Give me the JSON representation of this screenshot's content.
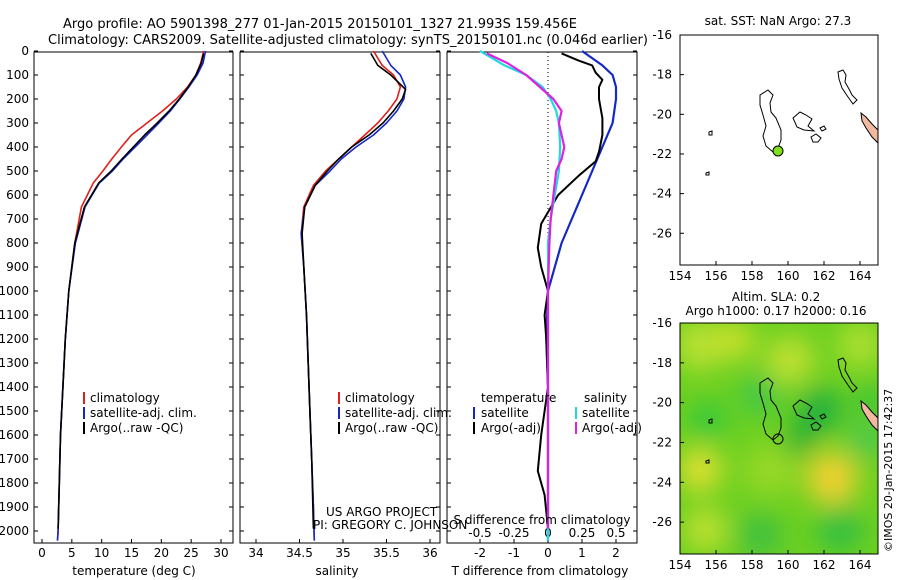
{
  "header": {
    "line1": "Argo profile: AO 5901398_277 01-Jan-2015 20150101_1327 21.993S 159.456E",
    "line2": "Climatology: CARS2009. Satellite-adjusted climatology: synTS_20150101.nc (0.046d earlier)"
  },
  "colors": {
    "climatology": "#e0201c",
    "satellite": "#1428c8",
    "argo": "#000000",
    "salinity_satellite": "#20d8e0",
    "salinity_argo": "#e020e0",
    "land_fill": "#f2b8a0",
    "float_marker": "#80e020"
  },
  "depth_axis": {
    "ticks": [
      "0",
      "100",
      "200",
      "300",
      "400",
      "500",
      "600",
      "700",
      "800",
      "900",
      "1000",
      "1100",
      "1200",
      "1300",
      "1400",
      "1500",
      "1600",
      "1700",
      "1800",
      "1900",
      "2000"
    ]
  },
  "chart_data": [
    {
      "type": "line",
      "xlabel": "temperature (deg C)",
      "ylabel": "",
      "xlim": [
        -1,
        31
      ],
      "ylim": [
        2060,
        0
      ],
      "xticks": [
        "0",
        "5",
        "10",
        "15",
        "20",
        "25",
        "30"
      ],
      "legend": {
        "placement": "bottom-left",
        "entries": [
          "climatology",
          "satellite-adj. clim.",
          "Argo(..raw -QC)"
        ]
      },
      "series": [
        {
          "name": "climatology",
          "color_key": "climatology",
          "x": [
            27.1,
            26.6,
            25.8,
            24.4,
            22.5,
            20.2,
            17.6,
            15.0,
            13.3,
            11.7,
            10.2,
            8.6,
            6.6,
            5.5,
            4.5,
            3.9,
            3.5,
            3.1,
            2.9,
            2.8,
            2.7,
            2.6
          ],
          "y": [
            0,
            50,
            100,
            150,
            200,
            250,
            300,
            350,
            400,
            450,
            500,
            550,
            650,
            800,
            1000,
            1200,
            1400,
            1600,
            1800,
            1900,
            2000,
            2040
          ]
        },
        {
          "name": "satellite-adj. clim.",
          "color_key": "satellite",
          "x": [
            27.4,
            27.0,
            26.0,
            24.6,
            23.1,
            21.5,
            19.6,
            17.6,
            15.6,
            13.6,
            11.8,
            9.6,
            7.2,
            5.6,
            4.5,
            3.9,
            3.5,
            3.1,
            2.9,
            2.8,
            2.7,
            2.6
          ],
          "y": [
            0,
            50,
            100,
            150,
            200,
            250,
            300,
            350,
            400,
            450,
            500,
            550,
            650,
            800,
            1000,
            1200,
            1400,
            1600,
            1800,
            1900,
            2000,
            2040
          ]
        },
        {
          "name": "Argo(..raw -QC)",
          "color_key": "argo",
          "x": [
            27.1,
            26.7,
            25.8,
            24.5,
            23.0,
            21.3,
            19.3,
            17.2,
            15.3,
            13.4,
            11.6,
            9.5,
            7.1,
            5.5,
            4.5,
            3.9,
            3.5,
            3.1,
            2.9,
            2.8,
            2.7
          ],
          "y": [
            10,
            50,
            100,
            150,
            200,
            250,
            300,
            350,
            400,
            450,
            500,
            550,
            650,
            800,
            1000,
            1200,
            1400,
            1600,
            1800,
            1900,
            1990
          ]
        }
      ]
    },
    {
      "type": "line",
      "xlabel": "salinity",
      "ylabel": "",
      "xlim": [
        33.6,
        36.2
      ],
      "ylim": [
        2060,
        0
      ],
      "xticks": [
        "34",
        "34.5",
        "35",
        "35.5",
        "36"
      ],
      "legend": {
        "placement": "bottom-left",
        "entries": [
          "climatology",
          "satellite-adj. clim.",
          "Argo(..raw -QC)"
        ]
      },
      "annotation": [
        "US ARGO PROJECT",
        "PI: GREGORY C. JOHNSON"
      ],
      "series": [
        {
          "name": "climatology",
          "color_key": "climatology",
          "x": [
            35.35,
            35.45,
            35.58,
            35.66,
            35.62,
            35.52,
            35.4,
            35.25,
            35.1,
            34.95,
            34.8,
            34.66,
            34.55,
            34.52,
            34.55,
            34.58,
            34.6,
            34.62,
            34.64,
            34.66,
            34.67
          ],
          "y": [
            0,
            60,
            100,
            150,
            200,
            250,
            300,
            350,
            400,
            450,
            500,
            560,
            650,
            760,
            900,
            1100,
            1300,
            1500,
            1700,
            1900,
            2040
          ]
        },
        {
          "name": "satellite-adj. clim.",
          "color_key": "satellite",
          "x": [
            35.45,
            35.55,
            35.66,
            35.72,
            35.7,
            35.62,
            35.5,
            35.35,
            35.15,
            34.98,
            34.85,
            34.68,
            34.56,
            34.52,
            34.55,
            34.58,
            34.6,
            34.62,
            34.64,
            34.66,
            34.67
          ],
          "y": [
            0,
            60,
            100,
            150,
            200,
            250,
            300,
            350,
            400,
            450,
            500,
            560,
            650,
            760,
            900,
            1100,
            1300,
            1500,
            1700,
            1900,
            2040
          ]
        },
        {
          "name": "Argo(..raw -QC)",
          "color_key": "argo",
          "x": [
            35.32,
            35.4,
            35.55,
            35.72,
            35.68,
            35.58,
            35.46,
            35.3,
            35.1,
            34.95,
            34.82,
            34.68,
            34.56,
            34.53,
            34.55,
            34.58,
            34.6,
            34.62,
            34.64,
            34.66
          ],
          "y": [
            10,
            60,
            100,
            160,
            200,
            250,
            300,
            350,
            400,
            450,
            500,
            560,
            650,
            760,
            900,
            1100,
            1300,
            1500,
            1700,
            1990
          ]
        }
      ]
    },
    {
      "type": "line",
      "xlabel": "T difference from climatology",
      "xlabel_top": "S difference from climatology",
      "xlim_T": [
        -2.6,
        2.9
      ],
      "xlim_S": [
        -0.65,
        0.725
      ],
      "ylim": [
        2060,
        0
      ],
      "xticks_T": [
        "-2",
        "-1",
        "0",
        "1",
        "2"
      ],
      "xticks_S": [
        "-0.5",
        "-0.25",
        "0",
        "0.25",
        "0.5"
      ],
      "legend": {
        "placement": "bottom",
        "groups": [
          "temperature",
          "salinity"
        ],
        "entries": [
          "satellite",
          "Argo(-adj)",
          "satellite",
          "Argo(-adj)"
        ]
      },
      "series": [
        {
          "name": "satellite",
          "group": "temperature",
          "axis": "T",
          "color_key": "satellite",
          "x": [
            1.0,
            1.6,
            1.9,
            2.0,
            2.0,
            1.9,
            1.6,
            1.3,
            1.0,
            0.7,
            0.4,
            0.2,
            0.0,
            -0.05,
            0.0,
            0.0,
            0.0,
            0.0,
            0.0
          ],
          "y": [
            0,
            60,
            100,
            150,
            200,
            300,
            400,
            500,
            600,
            700,
            800,
            900,
            1000,
            1200,
            1400,
            1600,
            1800,
            1900,
            2040
          ]
        },
        {
          "name": "Argo(-adj)",
          "group": "temperature",
          "axis": "T",
          "color_key": "argo",
          "x": [
            0.4,
            0.9,
            1.3,
            1.4,
            1.6,
            1.5,
            1.5,
            1.6,
            1.6,
            1.5,
            1.4,
            0.9,
            0.3,
            -0.2,
            -0.3,
            -0.2,
            0.0,
            -0.1,
            -0.05,
            0.0,
            -0.2,
            -0.3,
            -0.1,
            0.0
          ],
          "y": [
            10,
            40,
            60,
            90,
            120,
            150,
            200,
            280,
            350,
            420,
            460,
            520,
            600,
            720,
            820,
            900,
            1000,
            1100,
            1200,
            1400,
            1600,
            1750,
            1850,
            1990
          ]
        },
        {
          "name": "satellite",
          "group": "salinity",
          "axis": "S",
          "color_key": "salinity_satellite",
          "x": [
            -0.5,
            -0.32,
            -0.16,
            -0.04,
            0.02,
            0.06,
            0.08,
            0.09,
            0.08,
            0.05,
            0.02,
            0.0,
            0.0,
            0.0,
            0.0,
            0.0,
            0.0,
            0.0
          ],
          "y": [
            0,
            60,
            100,
            150,
            200,
            250,
            300,
            400,
            500,
            600,
            700,
            800,
            900,
            1100,
            1300,
            1500,
            1800,
            2040
          ]
        },
        {
          "name": "Argo(-adj)",
          "group": "salinity",
          "axis": "S",
          "color_key": "salinity_argo",
          "x": [
            -0.45,
            -0.3,
            -0.16,
            -0.06,
            0.04,
            0.1,
            0.08,
            0.12,
            0.1,
            0.06,
            0.04,
            0.02,
            0.01,
            0.0,
            0.0,
            0.0
          ],
          "y": [
            10,
            50,
            100,
            150,
            200,
            250,
            300,
            400,
            450,
            500,
            600,
            700,
            800,
            1000,
            1400,
            1990
          ]
        }
      ]
    },
    {
      "type": "scatter",
      "title": "sat. SST: NaN Argo: 27.3",
      "xlim": [
        154,
        165
      ],
      "ylim": [
        -27.6,
        -16
      ],
      "xticks": [
        "154",
        "156",
        "158",
        "160",
        "162",
        "164"
      ],
      "yticks": [
        "-16",
        "-18",
        "-20",
        "-22",
        "-24",
        "-26"
      ],
      "float_position": {
        "lon": 159.456,
        "lat": -21.993
      }
    },
    {
      "type": "heatmap",
      "title": "Altim. SLA: 0.2",
      "subtitle": "Argo h1000: 0.17 h2000: 0.16",
      "xlim": [
        154,
        165
      ],
      "ylim": [
        -27.6,
        -16
      ],
      "xticks": [
        "154",
        "156",
        "158",
        "160",
        "162",
        "164"
      ],
      "yticks": [
        "-16",
        "-18",
        "-20",
        "-22",
        "-24",
        "-26"
      ],
      "float_position": {
        "lon": 159.456,
        "lat": -21.993
      }
    }
  ],
  "footer": {
    "credit": "©IMOS 20-Jan-2015 17:42:37"
  }
}
